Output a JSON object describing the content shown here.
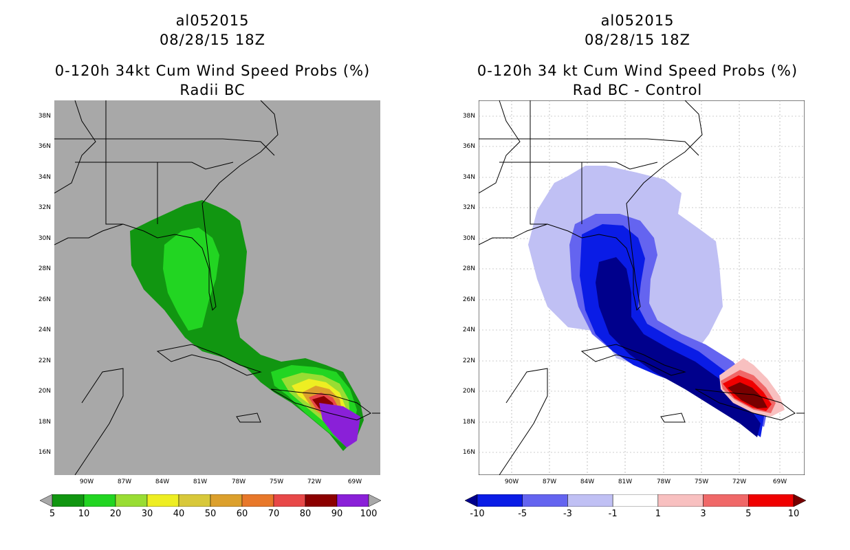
{
  "left_panel": {
    "title_line1": "al052015",
    "title_line2": "08/28/15 18Z",
    "title_line3": "0-120h 34kt Cum Wind Speed Probs (%)",
    "title_line4": "Radii BC",
    "background_color": "#a8a8a8",
    "colorbar": {
      "labels": [
        "5",
        "10",
        "20",
        "30",
        "40",
        "50",
        "60",
        "70",
        "80",
        "90",
        "100"
      ],
      "colors": [
        "#119611",
        "#22d522",
        "#99dd33",
        "#eeee22",
        "#d8c83a",
        "#dca02c",
        "#e8782a",
        "#e84848",
        "#8c0000",
        "#8a20d8"
      ],
      "end_colors": [
        "#a8a8a8",
        "#a8a8a8"
      ]
    }
  },
  "right_panel": {
    "title_line1": "al052015",
    "title_line2": "08/28/15 18Z",
    "title_line3": "0-120h 34 kt Cum Wind Speed Probs (%)",
    "title_line4": "Rad BC - Control",
    "background_color": "#ffffff",
    "colorbar": {
      "labels": [
        "-10",
        "-5",
        "-3",
        "-1",
        "1",
        "3",
        "5",
        "10"
      ],
      "colors": [
        "#0a1ce6",
        "#6464f0",
        "#c0c0f4",
        "#ffffff",
        "#f8c0c0",
        "#f06868",
        "#f00000"
      ],
      "end_colors": [
        "#00008c",
        "#780000"
      ]
    }
  },
  "axes": {
    "lat_labels": [
      "38N",
      "36N",
      "34N",
      "32N",
      "30N",
      "28N",
      "26N",
      "24N",
      "22N",
      "20N",
      "18N",
      "16N"
    ],
    "lon_labels": [
      "90W",
      "87W",
      "84W",
      "81W",
      "78W",
      "75W",
      "72W",
      "69W"
    ]
  }
}
